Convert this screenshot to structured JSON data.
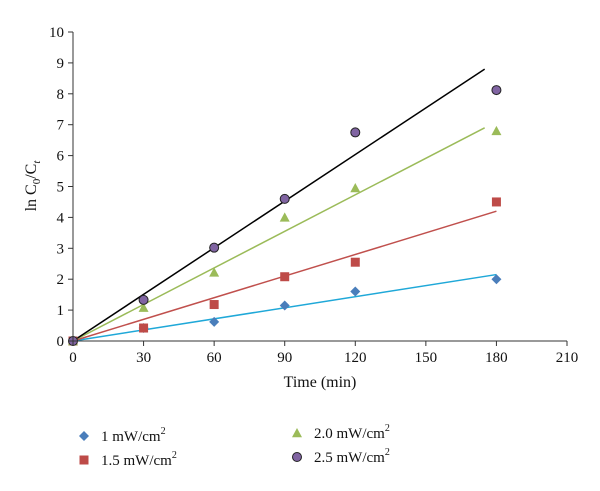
{
  "chart_data": {
    "type": "scatter",
    "title": "",
    "xlabel": "Time (min)",
    "ylabel_parts": {
      "prefix": "ln C",
      "sub0": "0",
      "mid": "/C",
      "subt": "t"
    },
    "xlim": [
      0,
      210
    ],
    "ylim": [
      0,
      10
    ],
    "x_ticks": [
      "0",
      "30",
      "60",
      "90",
      "120",
      "150",
      "180",
      "210"
    ],
    "y_ticks": [
      "0",
      "1",
      "2",
      "3",
      "4",
      "5",
      "6",
      "7",
      "8",
      "9",
      "10"
    ],
    "grid": false,
    "legend_position": "bottom",
    "series": [
      {
        "name": "1 mW/cm",
        "name_sup": "2",
        "marker": "diamond",
        "color": "#4a7ebb",
        "line_color": "#1fa8d8",
        "x": [
          0,
          30,
          60,
          90,
          120,
          180
        ],
        "y": [
          0,
          0.42,
          0.62,
          1.15,
          1.6,
          2.0
        ],
        "fit": {
          "x": [
            0,
            180
          ],
          "y": [
            0,
            2.15
          ]
        }
      },
      {
        "name": "1.5 mW/cm",
        "name_sup": "2",
        "marker": "square",
        "color": "#be4b48",
        "line_color": "#c0504d",
        "x": [
          0,
          30,
          60,
          90,
          120,
          180
        ],
        "y": [
          0,
          0.42,
          1.18,
          2.08,
          2.55,
          4.5
        ],
        "fit": {
          "x": [
            0,
            180
          ],
          "y": [
            0,
            4.2
          ]
        }
      },
      {
        "name": "2.0 mW/cm",
        "name_sup": "2",
        "marker": "triangle",
        "color": "#9bbb59",
        "line_color": "#9bbb59",
        "x": [
          0,
          30,
          60,
          90,
          120,
          180
        ],
        "y": [
          0,
          1.08,
          2.22,
          4.0,
          4.95,
          6.8
        ],
        "fit": {
          "x": [
            0,
            175
          ],
          "y": [
            0,
            6.9
          ]
        }
      },
      {
        "name": "2.5 mW/cm",
        "name_sup": "2",
        "marker": "circle",
        "color": "#8064a2",
        "line_color": "#000000",
        "x": [
          0,
          30,
          60,
          90,
          120,
          180
        ],
        "y": [
          0,
          1.33,
          3.02,
          4.6,
          6.75,
          8.12
        ],
        "fit": {
          "x": [
            0,
            175
          ],
          "y": [
            0,
            8.8
          ]
        }
      }
    ]
  }
}
